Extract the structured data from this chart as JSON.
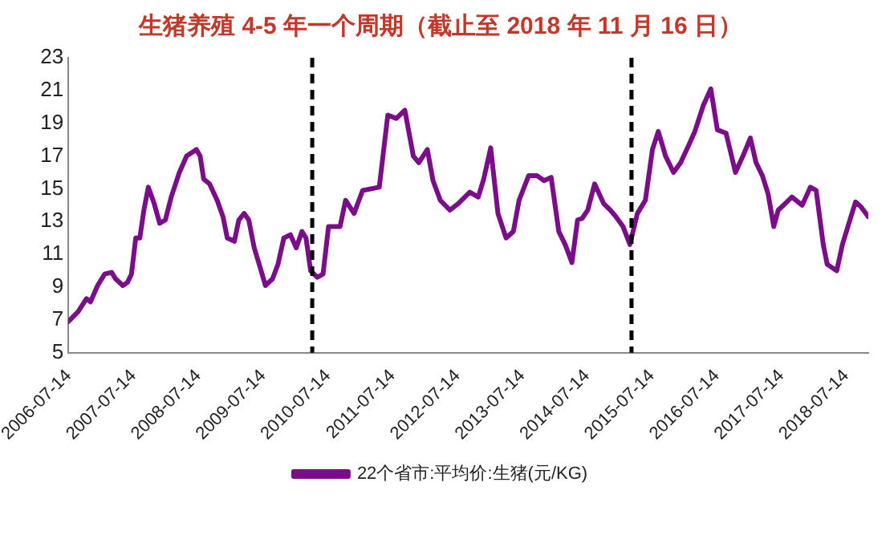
{
  "chart_data": {
    "type": "line",
    "title": "生猪养殖 4-5 年一个周期（截止至 2018 年 11 月 16 日）",
    "xlim": [
      "2006-07-12",
      "2018-11-16"
    ],
    "xticks": [
      "2006-07-14",
      "2007-07-14",
      "2008-07-14",
      "2009-07-14",
      "2010-07-14",
      "2011-07-14",
      "2012-07-14",
      "2013-07-14",
      "2014-07-14",
      "2015-07-14",
      "2016-07-14",
      "2017-07-14",
      "2018-07-14"
    ],
    "ylim": [
      5,
      23
    ],
    "yticks": [
      5,
      7,
      9,
      11,
      13,
      15,
      17,
      19,
      21,
      23
    ],
    "grid": false,
    "legend": "bottom",
    "marker": "none",
    "line_style": "solid",
    "ref_lines": [
      {
        "axis": "x",
        "value": "2010-04-17",
        "color": "#000000",
        "line_style": "dashed"
      },
      {
        "axis": "x",
        "value": "2015-03-22",
        "color": "#000000",
        "line_style": "dashed"
      }
    ],
    "series": [
      {
        "name": "22个省市:平均价:生猪(元/KG)",
        "color": "#7b0d8a",
        "x": [
          "2006-07-12",
          "2006-09-05",
          "2006-10-22",
          "2006-11-14",
          "2006-12-24",
          "2007-02-02",
          "2007-03-13",
          "2007-04-05",
          "2007-05-15",
          "2007-06-11",
          "2007-07-03",
          "2007-07-27",
          "2007-08-19",
          "2007-09-11",
          "2007-10-06",
          "2007-11-08",
          "2007-12-09",
          "2008-01-10",
          "2008-02-12",
          "2008-03-29",
          "2008-05-09",
          "2008-07-03",
          "2008-07-24",
          "2008-08-13",
          "2008-09-15",
          "2008-10-28",
          "2008-11-30",
          "2008-12-24",
          "2009-02-02",
          "2009-02-27",
          "2009-03-29",
          "2009-04-24",
          "2009-05-25",
          "2009-07-03",
          "2009-07-27",
          "2009-09-05",
          "2009-10-06",
          "2009-11-08",
          "2009-12-15",
          "2010-01-17",
          "2010-02-18",
          "2010-03-13",
          "2010-04-08",
          "2010-05-16",
          "2010-06-17",
          "2010-07-18",
          "2010-09-21",
          "2010-10-22",
          "2010-12-09",
          "2011-01-26",
          "2011-04-30",
          "2011-06-17",
          "2011-08-04",
          "2011-09-21",
          "2011-11-08",
          "2011-12-09",
          "2012-01-26",
          "2012-02-27",
          "2012-04-08",
          "2012-06-01",
          "2012-07-18",
          "2012-09-21",
          "2012-11-08",
          "2012-12-09",
          "2013-01-17",
          "2013-02-27",
          "2013-04-14",
          "2013-05-25",
          "2013-06-26",
          "2013-08-19",
          "2013-10-06",
          "2013-11-14",
          "2013-12-24",
          "2014-02-05",
          "2014-03-13",
          "2014-04-20",
          "2014-05-22",
          "2014-06-17",
          "2014-07-18",
          "2014-08-26",
          "2014-10-16",
          "2014-11-23",
          "2014-12-24",
          "2015-02-02",
          "2015-03-13",
          "2015-04-24",
          "2015-06-08",
          "2015-07-18",
          "2015-08-20",
          "2015-09-30",
          "2015-11-14",
          "2015-12-24",
          "2016-02-05",
          "2016-03-13",
          "2016-04-30",
          "2016-06-11",
          "2016-07-18",
          "2016-09-05",
          "2016-10-06",
          "2016-10-28",
          "2016-12-09",
          "2017-01-20",
          "2017-02-21",
          "2017-03-29",
          "2017-04-30",
          "2017-06-01",
          "2017-06-26",
          "2017-08-04",
          "2017-09-11",
          "2017-11-08",
          "2017-12-24",
          "2018-01-26",
          "2018-03-07",
          "2018-03-29",
          "2018-05-22",
          "2018-06-23",
          "2018-07-24",
          "2018-09-05",
          "2018-10-06",
          "2018-11-16"
        ],
        "values": [
          6.9,
          7.5,
          8.3,
          8.1,
          9.1,
          9.8,
          9.9,
          9.5,
          9.1,
          9.3,
          9.8,
          12.0,
          12.0,
          13.7,
          15.1,
          14.1,
          12.9,
          13.1,
          14.5,
          16.0,
          17.0,
          17.4,
          17.0,
          15.6,
          15.3,
          14.3,
          13.3,
          12.0,
          11.8,
          13.1,
          13.5,
          13.1,
          11.4,
          10.0,
          9.1,
          9.5,
          10.4,
          12.0,
          12.2,
          11.4,
          12.4,
          12.0,
          10.0,
          9.6,
          9.8,
          12.7,
          12.7,
          14.3,
          13.5,
          14.9,
          15.1,
          19.5,
          19.3,
          19.8,
          17.0,
          16.6,
          17.4,
          15.5,
          14.3,
          13.7,
          14.1,
          14.8,
          14.5,
          15.6,
          17.5,
          13.5,
          12.0,
          12.4,
          14.3,
          15.8,
          15.8,
          15.5,
          15.7,
          12.4,
          11.6,
          10.5,
          13.1,
          13.2,
          13.7,
          15.3,
          14.1,
          13.7,
          13.3,
          12.7,
          11.6,
          13.5,
          14.3,
          17.4,
          18.5,
          17.0,
          16.0,
          16.6,
          17.6,
          18.5,
          20.1,
          21.1,
          18.6,
          18.4,
          17.0,
          16.0,
          17.0,
          18.1,
          16.6,
          15.8,
          14.7,
          12.7,
          13.7,
          14.1,
          14.5,
          14.0,
          15.1,
          14.9,
          11.6,
          10.4,
          10.0,
          11.6,
          12.7,
          14.2,
          13.9,
          13.3
        ]
      }
    ]
  }
}
